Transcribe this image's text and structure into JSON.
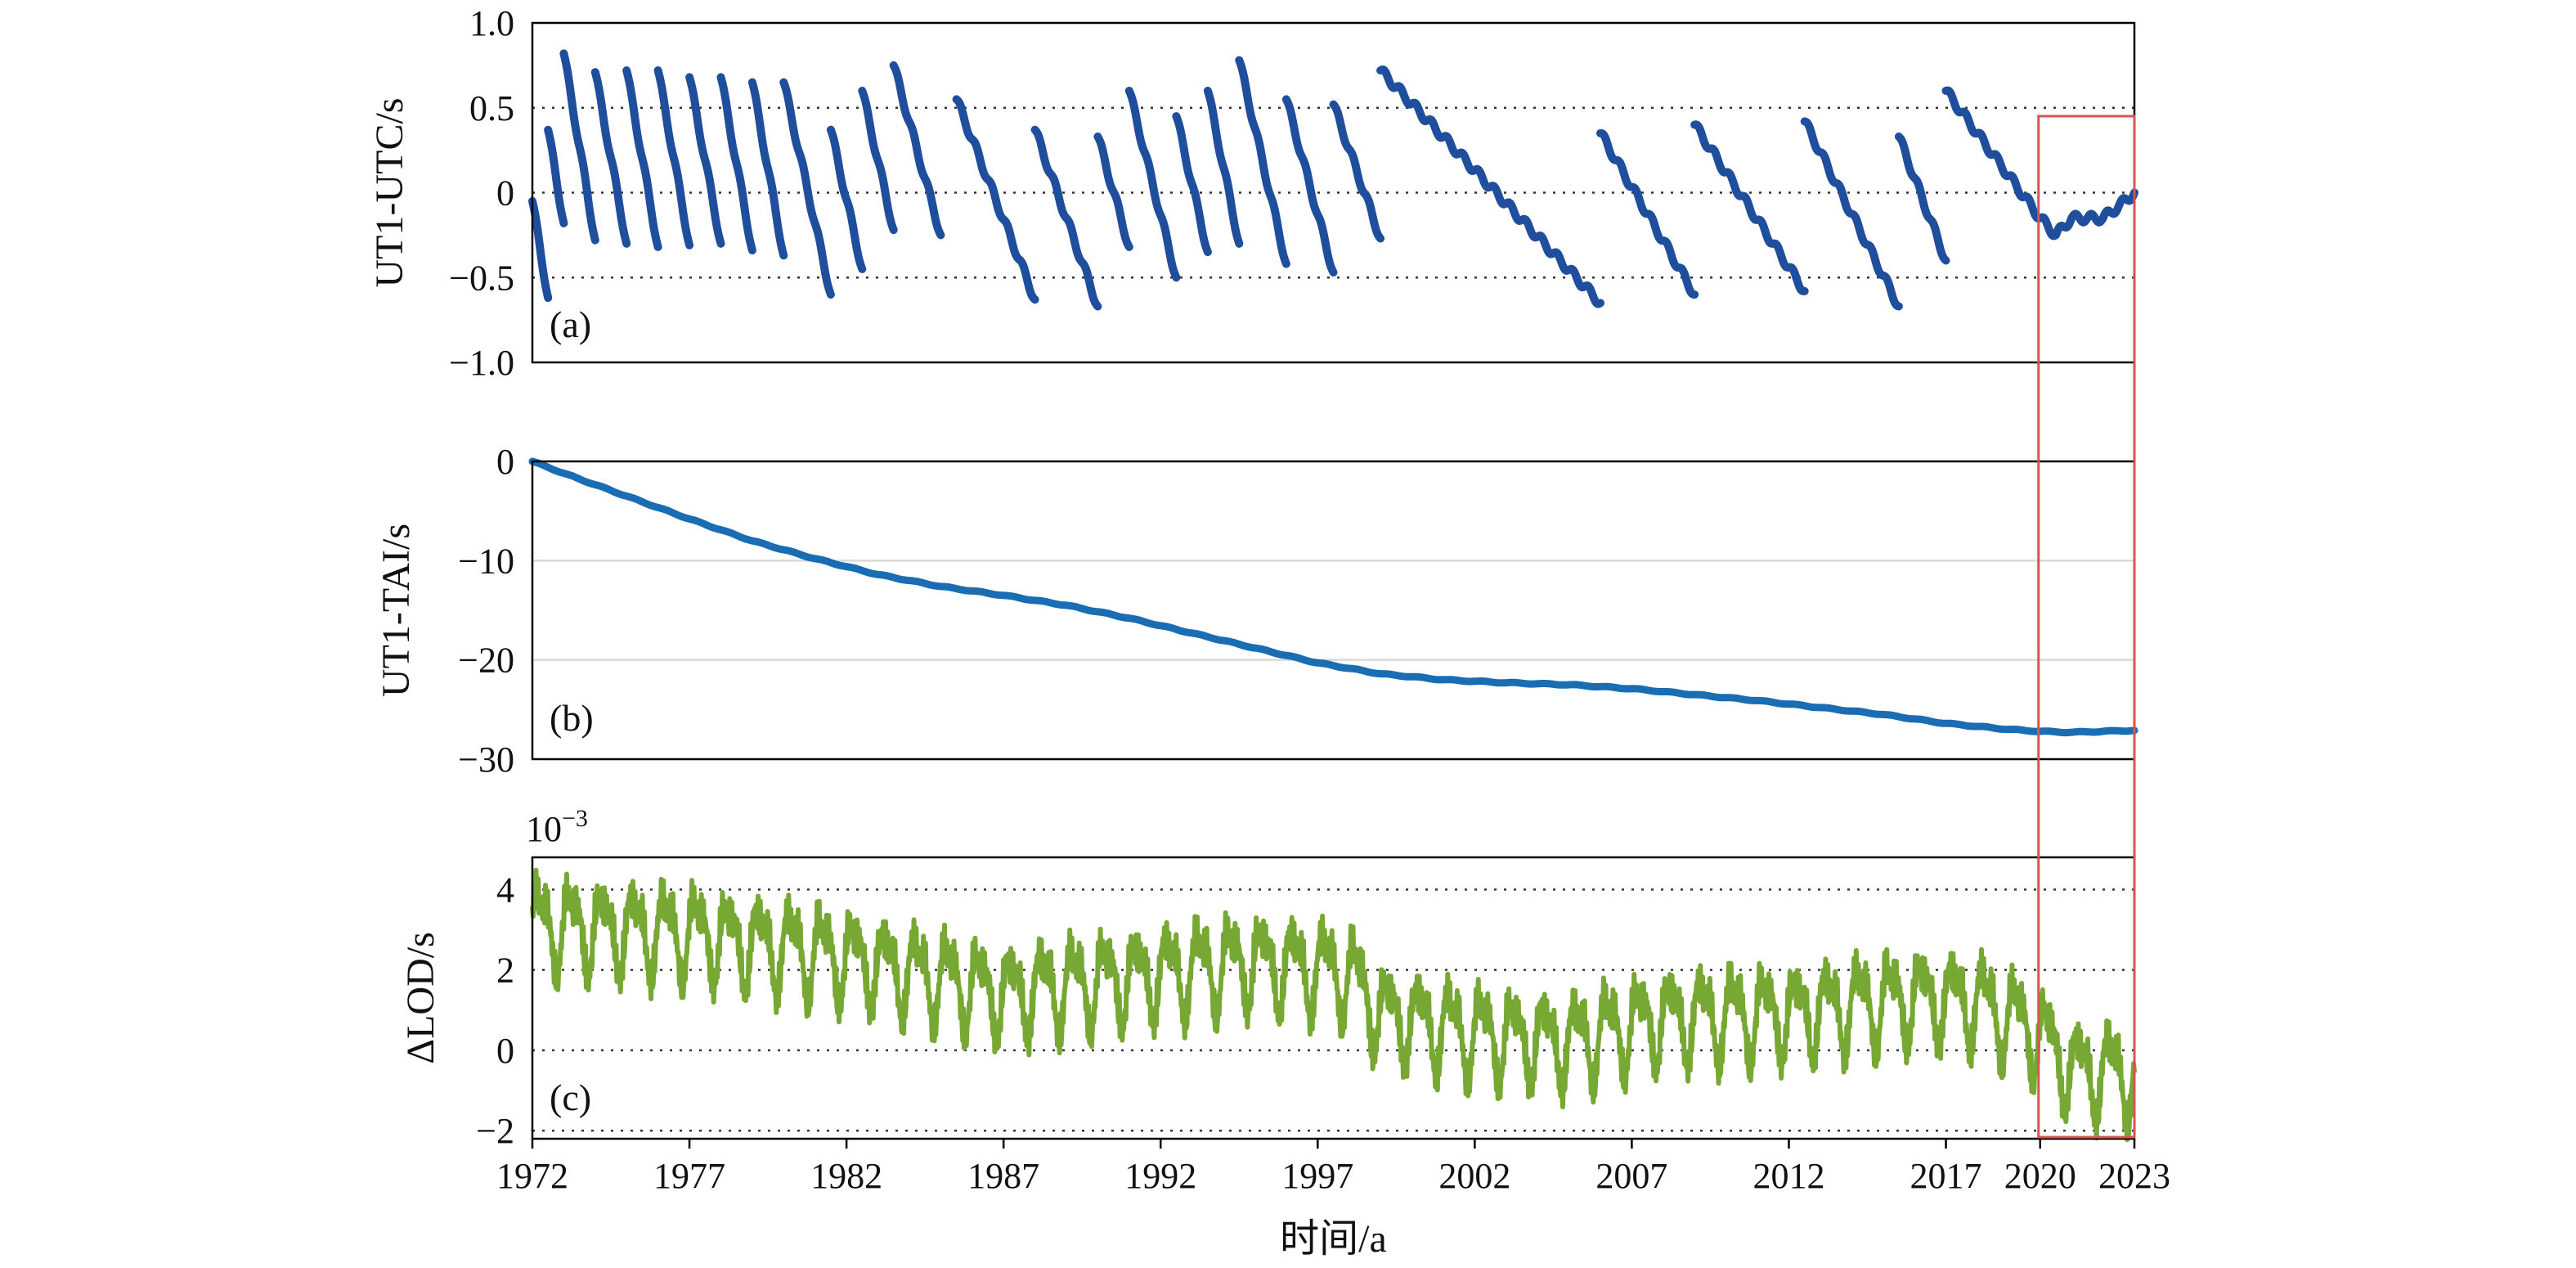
{
  "chart_data": [
    {
      "type": "line",
      "panel": "a",
      "ylabel": "UT1-UTC/s",
      "ylim": [
        -1.0,
        1.0
      ],
      "yticks": [
        "1.0",
        "0.5",
        "0",
        "−0.5",
        "−1.0"
      ],
      "ytick_values": [
        1.0,
        0.5,
        0,
        -0.5,
        -1.0
      ],
      "grid": "dotted",
      "color": "#1f4e9c",
      "tag": "(a)",
      "series": [
        {
          "x": [
            1972.0,
            1972.5
          ],
          "y": [
            -0.05,
            -0.62
          ]
        },
        {
          "x": [
            1972.5,
            1973.0
          ],
          "y": [
            0.37,
            -0.18
          ]
        },
        {
          "x": [
            1973.0,
            1974.0
          ],
          "y": [
            0.82,
            -0.28
          ]
        },
        {
          "x": [
            1974.0,
            1975.0
          ],
          "y": [
            0.71,
            -0.3
          ]
        },
        {
          "x": [
            1975.0,
            1976.0
          ],
          "y": [
            0.72,
            -0.32
          ]
        },
        {
          "x": [
            1976.0,
            1977.0
          ],
          "y": [
            0.72,
            -0.31
          ]
        },
        {
          "x": [
            1977.0,
            1978.0
          ],
          "y": [
            0.68,
            -0.3
          ]
        },
        {
          "x": [
            1978.0,
            1979.0
          ],
          "y": [
            0.68,
            -0.34
          ]
        },
        {
          "x": [
            1979.0,
            1980.0
          ],
          "y": [
            0.65,
            -0.37
          ]
        },
        {
          "x": [
            1980.0,
            1981.5
          ],
          "y": [
            0.65,
            -0.6
          ]
        },
        {
          "x": [
            1981.5,
            1982.5
          ],
          "y": [
            0.37,
            -0.45
          ]
        },
        {
          "x": [
            1982.5,
            1983.5
          ],
          "y": [
            0.6,
            -0.22
          ]
        },
        {
          "x": [
            1983.5,
            1985.0
          ],
          "y": [
            0.75,
            -0.25
          ]
        },
        {
          "x": [
            1985.5,
            1988.0
          ],
          "y": [
            0.55,
            -0.63
          ]
        },
        {
          "x": [
            1988.0,
            1990.0
          ],
          "y": [
            0.37,
            -0.67
          ]
        },
        {
          "x": [
            1990.0,
            1991.0
          ],
          "y": [
            0.33,
            -0.32
          ]
        },
        {
          "x": [
            1991.0,
            1992.5
          ],
          "y": [
            0.6,
            -0.5
          ]
        },
        {
          "x": [
            1992.5,
            1993.5
          ],
          "y": [
            0.45,
            -0.35
          ]
        },
        {
          "x": [
            1993.5,
            1994.5
          ],
          "y": [
            0.6,
            -0.3
          ]
        },
        {
          "x": [
            1994.5,
            1996.0
          ],
          "y": [
            0.78,
            -0.42
          ]
        },
        {
          "x": [
            1996.0,
            1997.5
          ],
          "y": [
            0.55,
            -0.47
          ]
        },
        {
          "x": [
            1997.5,
            1999.0
          ],
          "y": [
            0.52,
            -0.27
          ]
        },
        {
          "x": [
            1999.0,
            2006.0
          ],
          "y": [
            0.72,
            -0.65
          ]
        },
        {
          "x": [
            2006.0,
            2009.0
          ],
          "y": [
            0.35,
            -0.6
          ]
        },
        {
          "x": [
            2009.0,
            2012.5
          ],
          "y": [
            0.4,
            -0.58
          ]
        },
        {
          "x": [
            2012.5,
            2015.5
          ],
          "y": [
            0.42,
            -0.67
          ]
        },
        {
          "x": [
            2015.5,
            2017.0
          ],
          "y": [
            0.33,
            -0.4
          ]
        },
        {
          "x": [
            2017.0,
            2020.0,
            2020.5,
            2021.0,
            2022.0,
            2022.5,
            2023.0
          ],
          "y": [
            0.6,
            -0.15,
            -0.25,
            -0.15,
            -0.15,
            -0.08,
            0.0
          ]
        }
      ]
    },
    {
      "type": "line",
      "panel": "b",
      "ylabel": "UT1-TAI/s",
      "ylim": [
        -30,
        0
      ],
      "yticks": [
        "0",
        "−10",
        "−20",
        "−30"
      ],
      "ytick_values": [
        0,
        -10,
        -20,
        -30
      ],
      "grid": "solid-light",
      "color": "#1a6db3",
      "tag": "(b)",
      "series": [
        {
          "x": [
            1972,
            1973,
            1975,
            1977,
            1979,
            1981,
            1983,
            1985,
            1987,
            1989,
            1991,
            1993,
            1995,
            1997,
            1999,
            2001,
            2003,
            2005,
            2007,
            2009,
            2011,
            2013,
            2015,
            2017,
            2019,
            2020,
            2021,
            2022,
            2023
          ],
          "y": [
            0,
            -1.2,
            -3.5,
            -5.8,
            -8.0,
            -9.8,
            -11.4,
            -12.6,
            -13.5,
            -14.5,
            -15.8,
            -17.3,
            -18.8,
            -20.3,
            -21.4,
            -22.0,
            -22.3,
            -22.5,
            -22.9,
            -23.5,
            -24.1,
            -24.8,
            -25.5,
            -26.4,
            -27.0,
            -27.2,
            -27.3,
            -27.2,
            -27.1
          ]
        }
      ]
    },
    {
      "type": "line",
      "panel": "c",
      "ylabel": "ΔLOD/s",
      "scale_note": "10−3",
      "ylim": [
        -2.2,
        4.8
      ],
      "yticks": [
        "4",
        "2",
        "0",
        "−2"
      ],
      "ytick_values": [
        4,
        2,
        0,
        -2
      ],
      "grid": "dotted",
      "color": "#77a833",
      "tag": "(c)",
      "series": [
        {
          "x_start": 1972,
          "x_end": 2023,
          "trend_x": [
            1972,
            1977,
            1982,
            1987,
            1992,
            1995,
            1998,
            1999,
            2002,
            2005,
            2008,
            2012,
            2016,
            2018,
            2020,
            2021,
            2023
          ],
          "trend_y": [
            3.1,
            2.9,
            2.3,
            1.4,
            1.9,
            2.2,
            1.9,
            0.9,
            0.4,
            0.2,
            0.8,
            0.9,
            1.3,
            1.2,
            0.4,
            -0.5,
            -0.6
          ],
          "annual_amplitude": 0.9,
          "semiannual_amplitude": 0.4
        }
      ]
    }
  ],
  "x_axis": {
    "xlim": [
      1972,
      2023
    ],
    "ticks": [
      1972,
      1977,
      1982,
      1987,
      1992,
      1997,
      2002,
      2007,
      2012,
      2017,
      2020,
      2023
    ],
    "tick_labels": [
      "1972",
      "1977",
      "1982",
      "1987",
      "1992",
      "1997",
      "2002",
      "2007",
      "2012",
      "2017",
      "2020",
      "2023"
    ],
    "label": "时间/a"
  },
  "highlight": {
    "x_range": [
      2020,
      2023
    ],
    "color": "#d9534f"
  }
}
